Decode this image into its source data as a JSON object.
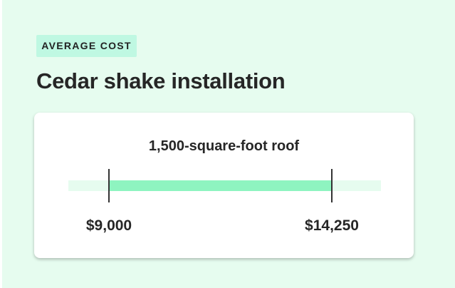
{
  "tag": "AVERAGE COST",
  "title": "Cedar shake installation",
  "chart_data": {
    "type": "range",
    "title": "1,500-square-foot roof",
    "low": 9000,
    "high": 14250,
    "low_label": "$9,000",
    "high_label": "$14,250",
    "colors": {
      "fill": "#8ef4c0",
      "track": "#e6fcef",
      "tick": "#333333"
    }
  }
}
